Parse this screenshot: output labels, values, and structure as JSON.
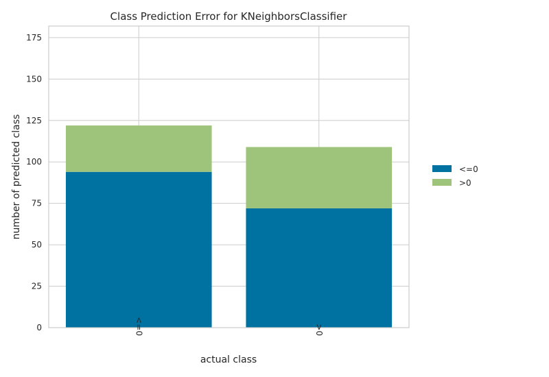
{
  "chart_data": {
    "type": "bar",
    "stacked": true,
    "title": "Class Prediction Error for KNeighborsClassifier",
    "xlabel": "actual class",
    "ylabel": "number of predicted class",
    "categories": [
      "<=0",
      ">0"
    ],
    "series": [
      {
        "name": "<=0",
        "values": [
          94,
          72
        ],
        "color": "#0072a2"
      },
      {
        "name": ">0",
        "values": [
          28,
          37
        ],
        "color": "#9ec37a"
      }
    ],
    "ylim": [
      0,
      182
    ],
    "yticks": [
      0,
      25,
      50,
      75,
      100,
      125,
      150,
      175
    ],
    "grid": true,
    "legend_position": "right"
  }
}
